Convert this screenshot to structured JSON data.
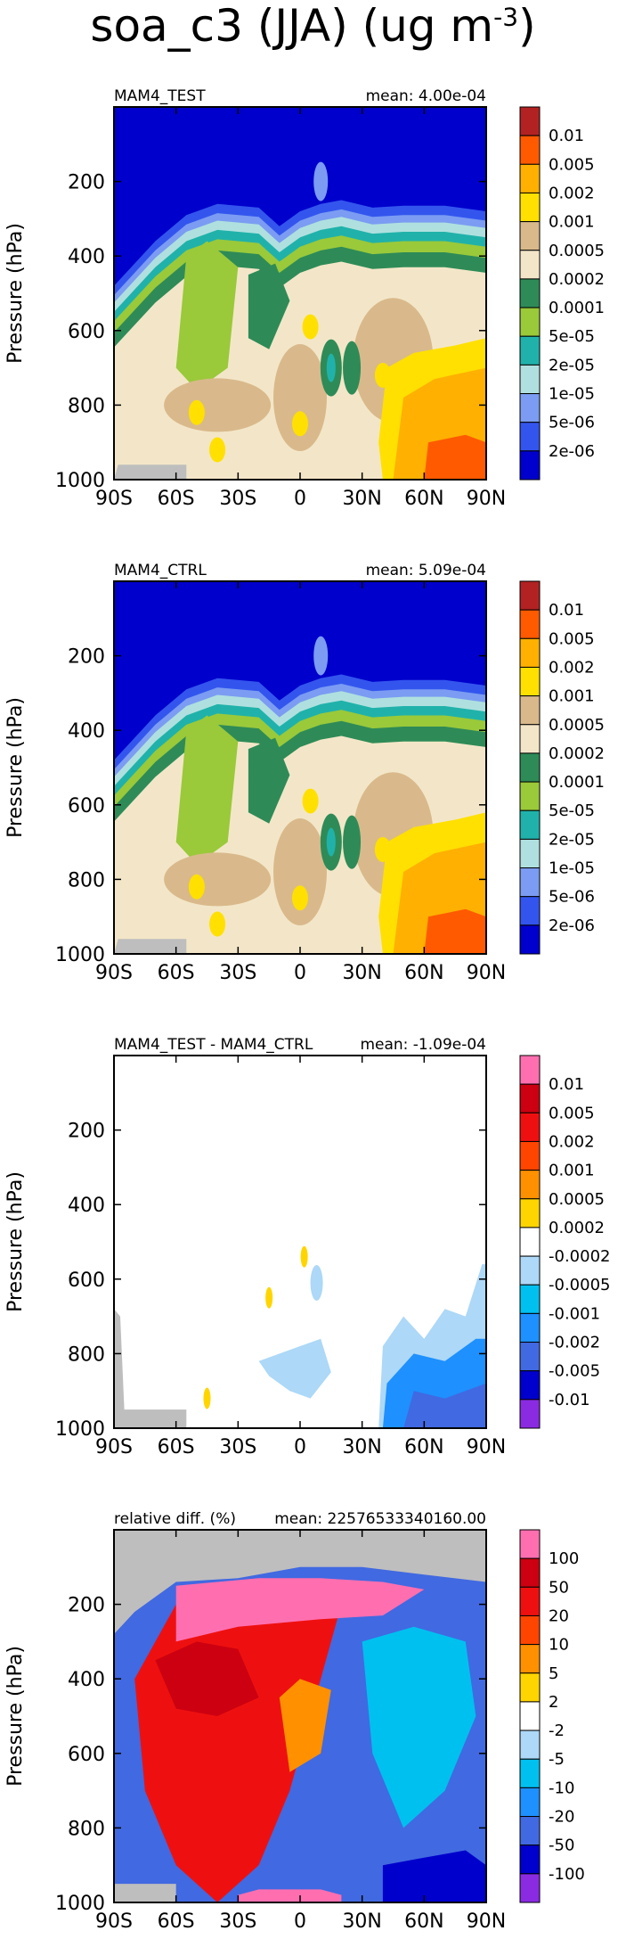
{
  "figure": {
    "title": "soa_c3 (JJA) (ug m",
    "title_sup": "-3"
  },
  "chart_data": [
    {
      "type": "heatmap",
      "panel": "MAM4_TEST",
      "title_left": "MAM4_TEST",
      "title_right": "mean: 4.00e-04",
      "ylabel": "Pressure (hPa)",
      "xticks": [
        "90S",
        "60S",
        "30S",
        "0",
        "30N",
        "60N",
        "90N"
      ],
      "yticks": [
        "200",
        "400",
        "600",
        "800",
        "1000"
      ],
      "xlim": [
        -90,
        90
      ],
      "ylim": [
        1000,
        0
      ],
      "colorbar_labels": [
        "0.01",
        "0.005",
        "0.002",
        "0.001",
        "0.0005",
        "0.0002",
        "0.0001",
        "5e-05",
        "2e-05",
        "1e-05",
        "5e-06",
        "2e-06"
      ],
      "colorbar_colors": [
        "#b22222",
        "#ff5a00",
        "#ffb000",
        "#ffe000",
        "#d9b98b",
        "#f3e6c8",
        "#2e8b57",
        "#9ac93a",
        "#20b2aa",
        "#afe0df",
        "#7b9cf2",
        "#3355ee",
        "#0000cc"
      ]
    },
    {
      "type": "heatmap",
      "panel": "MAM4_CTRL",
      "title_left": "MAM4_CTRL",
      "title_right": "mean: 5.09e-04",
      "ylabel": "Pressure (hPa)",
      "xticks": [
        "90S",
        "60S",
        "30S",
        "0",
        "30N",
        "60N",
        "90N"
      ],
      "yticks": [
        "200",
        "400",
        "600",
        "800",
        "1000"
      ],
      "xlim": [
        -90,
        90
      ],
      "ylim": [
        1000,
        0
      ],
      "colorbar_labels": [
        "0.01",
        "0.005",
        "0.002",
        "0.001",
        "0.0005",
        "0.0002",
        "0.0001",
        "5e-05",
        "2e-05",
        "1e-05",
        "5e-06",
        "2e-06"
      ],
      "colorbar_colors": [
        "#b22222",
        "#ff5a00",
        "#ffb000",
        "#ffe000",
        "#d9b98b",
        "#f3e6c8",
        "#2e8b57",
        "#9ac93a",
        "#20b2aa",
        "#afe0df",
        "#7b9cf2",
        "#3355ee",
        "#0000cc"
      ]
    },
    {
      "type": "heatmap",
      "panel": "difference",
      "title_left": "MAM4_TEST - MAM4_CTRL",
      "title_right": "mean: -1.09e-04",
      "ylabel": "Pressure (hPa)",
      "xticks": [
        "90S",
        "60S",
        "30S",
        "0",
        "30N",
        "60N",
        "90N"
      ],
      "yticks": [
        "200",
        "400",
        "600",
        "800",
        "1000"
      ],
      "xlim": [
        -90,
        90
      ],
      "ylim": [
        1000,
        0
      ],
      "colorbar_labels": [
        "0.01",
        "0.005",
        "0.002",
        "0.001",
        "0.0005",
        "0.0002",
        "-0.0002",
        "-0.0005",
        "-0.001",
        "-0.002",
        "-0.005",
        "-0.01"
      ],
      "colorbar_colors": [
        "#ff6fb0",
        "#cc0010",
        "#ee1010",
        "#ff4500",
        "#ff9000",
        "#ffd500",
        "#ffffff",
        "#add8f7",
        "#00c0f0",
        "#1e90ff",
        "#4169e1",
        "#0000cc",
        "#8a2be2"
      ]
    },
    {
      "type": "heatmap",
      "panel": "relative_diff",
      "title_left": "relative diff. (%)",
      "title_right": "mean: 22576533340160.00",
      "ylabel": "Pressure (hPa)",
      "xticks": [
        "90S",
        "60S",
        "30S",
        "0",
        "30N",
        "60N",
        "90N"
      ],
      "yticks": [
        "200",
        "400",
        "600",
        "800",
        "1000"
      ],
      "xlim": [
        -90,
        90
      ],
      "ylim": [
        1000,
        0
      ],
      "colorbar_labels": [
        "100",
        "50",
        "20",
        "10",
        "5",
        "2",
        "-2",
        "-5",
        "-10",
        "-20",
        "-50",
        "-100"
      ],
      "colorbar_colors": [
        "#ff6fb0",
        "#cc0010",
        "#ee1010",
        "#ff4500",
        "#ff9000",
        "#ffd500",
        "#ffffff",
        "#add8f7",
        "#00c0f0",
        "#1e90ff",
        "#4169e1",
        "#0000cc",
        "#8a2be2"
      ]
    }
  ]
}
